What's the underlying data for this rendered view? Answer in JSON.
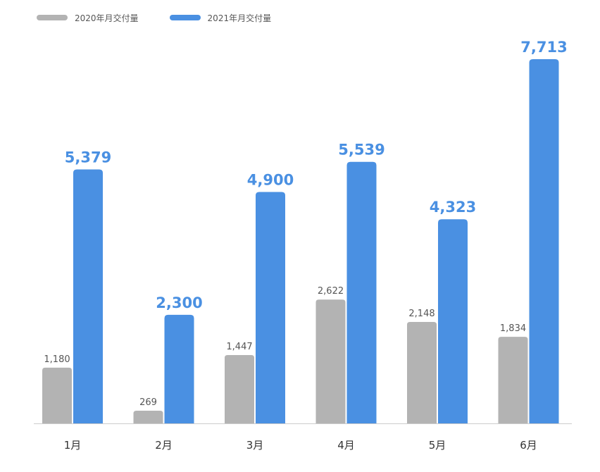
{
  "colors": {
    "series_2020": "#b3b3b3",
    "series_2021": "#4a90e2",
    "label_2020": "#555555",
    "label_2021": "#4a90e2",
    "axis": "#cccccc"
  },
  "legend": {
    "items": [
      {
        "label": "2020年月交付量"
      },
      {
        "label": "2021年月交付量"
      }
    ]
  },
  "chart_data": {
    "type": "bar",
    "title": "",
    "xlabel": "",
    "ylabel": "",
    "categories": [
      "1月",
      "2月",
      "3月",
      "4月",
      "5月",
      "6月"
    ],
    "series": [
      {
        "name": "2020年月交付量",
        "values": [
          1180,
          269,
          1447,
          2622,
          2148,
          1834
        ],
        "labels": [
          "1,180",
          "269",
          "1,447",
          "2,622",
          "2,148",
          "1,834"
        ]
      },
      {
        "name": "2021年月交付量",
        "values": [
          5379,
          2300,
          4900,
          5539,
          4323,
          7713
        ],
        "labels": [
          "5,379",
          "2,300",
          "4,900",
          "5,539",
          "4,323",
          "7,713"
        ]
      }
    ],
    "ylim": [
      0,
      7713
    ],
    "grid": false,
    "legend_position": "top-left"
  }
}
